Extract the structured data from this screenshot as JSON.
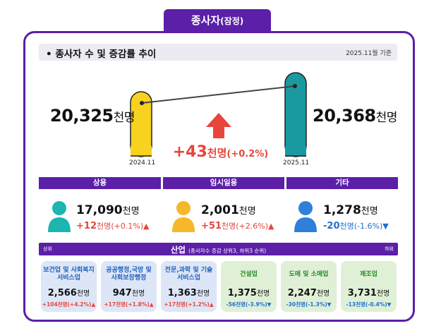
{
  "header": {
    "tab_main": "종사자",
    "tab_sub": "(잠정)"
  },
  "title": {
    "text": "종사자 수 및 증감률 추이",
    "date": "2025.11월 기준"
  },
  "comparison": {
    "left": {
      "value": "20,325",
      "unit": "천명",
      "label": "2024.11",
      "color": "#f7d21e"
    },
    "right": {
      "value": "20,368",
      "unit": "천명",
      "label": "2025.11",
      "color": "#1a9aa0"
    },
    "change": {
      "value": "+43",
      "unit": "천명",
      "pct": "(+0.2%)"
    }
  },
  "categories": [
    {
      "name": "상용",
      "value": "17,090",
      "unit": "천명",
      "change": "+12",
      "change_unit": "천명",
      "pct": "(+0.1%)",
      "dir": "up",
      "person_color": "#1cb5b0"
    },
    {
      "name": "임시일용",
      "value": "2,001",
      "unit": "천명",
      "change": "+51",
      "change_unit": "천명",
      "pct": "(+2.6%)",
      "dir": "up",
      "person_color": "#f5b82a"
    },
    {
      "name": "기타",
      "value": "1,278",
      "unit": "천명",
      "change": "-20",
      "change_unit": "천명",
      "pct": "(-1.6%)",
      "dir": "down",
      "person_color": "#2f80d8"
    }
  ],
  "industry": {
    "left_label": "상위",
    "title": "산업",
    "note": "(종사자수 증감 상위3, 하위3 순위)",
    "right_label": "하위",
    "cards": [
      {
        "name1": "보건업 및 사회복지",
        "name2": "서비스업",
        "value": "2,566",
        "unit": "천명",
        "change": "+104천명(+4.2%)",
        "dir": "up"
      },
      {
        "name1": "공공행정,국방 및",
        "name2": "사회보장행정",
        "value": "947",
        "unit": "천명",
        "change": "+17천명(+1.8%)",
        "dir": "up"
      },
      {
        "name1": "전문,과학 및 기술",
        "name2": "서비스업",
        "value": "1,363",
        "unit": "천명",
        "change": "+17천명(+1.2%)",
        "dir": "up"
      },
      {
        "name1": "건설업",
        "name2": "",
        "value": "1,375",
        "unit": "천명",
        "change": "-56천명(-3.9%)",
        "dir": "down"
      },
      {
        "name1": "도매 및 소매업",
        "name2": "",
        "value": "2,247",
        "unit": "천명",
        "change": "-30천명(-1.3%)",
        "dir": "down"
      },
      {
        "name1": "제조업",
        "name2": "",
        "value": "3,731",
        "unit": "천명",
        "change": "-13천명(-0.4%)",
        "dir": "down"
      }
    ]
  }
}
